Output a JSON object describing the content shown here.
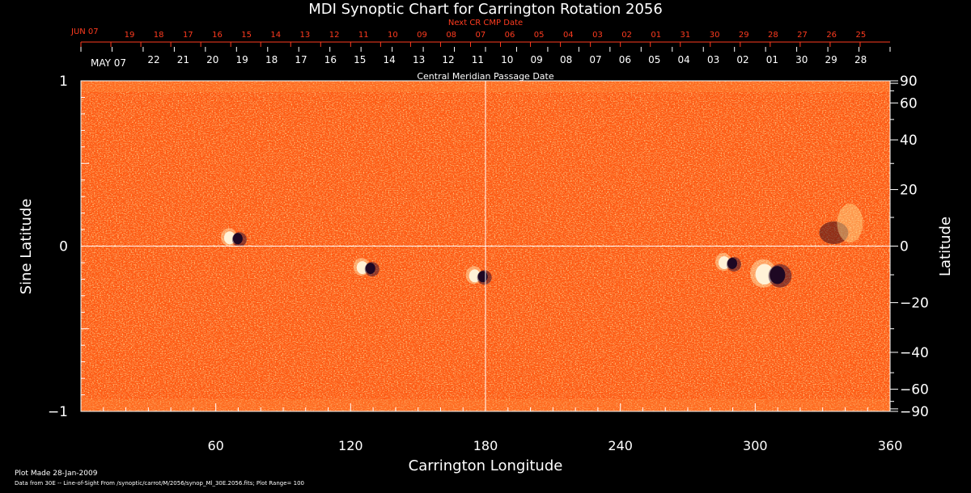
{
  "chart_data": {
    "type": "heatmap",
    "title": "MDI Synoptic Chart for Carrington Rotation 2056",
    "xlabel": "Carrington Longitude",
    "ylabel_left": "Sine Latitude",
    "ylabel_right": "Latitude",
    "xlim": [
      0,
      360
    ],
    "ylim": [
      -1,
      1
    ],
    "x_ticks": [
      60,
      120,
      180,
      240,
      300,
      360
    ],
    "y_left_ticks": [
      {
        "value": 1,
        "label": "1"
      },
      {
        "value": 0,
        "label": "0"
      },
      {
        "value": -1,
        "label": "−1"
      }
    ],
    "y_right_ticks": [
      {
        "deg": 90,
        "label": "90"
      },
      {
        "deg": 60,
        "label": "60"
      },
      {
        "deg": 40,
        "label": "40"
      },
      {
        "deg": 20,
        "label": "20"
      },
      {
        "deg": 0,
        "label": "0"
      },
      {
        "deg": -20,
        "label": "−20"
      },
      {
        "deg": -40,
        "label": "−40"
      },
      {
        "deg": -60,
        "label": "−60"
      },
      {
        "deg": -90,
        "label": "−90"
      }
    ],
    "top_axis_next_cr": {
      "label": "Next CR CMP Date",
      "first": "JUN 07",
      "days": [
        "19",
        "18",
        "17",
        "16",
        "15",
        "14",
        "13",
        "12",
        "11",
        "10",
        "09",
        "08",
        "07",
        "06",
        "05",
        "04",
        "03",
        "02",
        "01",
        "31",
        "30",
        "29",
        "28",
        "27",
        "26",
        "25"
      ]
    },
    "top_axis_cmp": {
      "label": "Central Meridian Passage Date",
      "first": "MAY 07",
      "days": [
        "22",
        "21",
        "20",
        "19",
        "18",
        "17",
        "16",
        "15",
        "14",
        "13",
        "12",
        "11",
        "10",
        "09",
        "08",
        "07",
        "06",
        "05",
        "04",
        "03",
        "02",
        "01",
        "30",
        "29",
        "28"
      ]
    },
    "active_regions": [
      {
        "lon": 68,
        "sinlat": 0.05,
        "note": "bipolar"
      },
      {
        "lon": 127,
        "sinlat": -0.13,
        "note": "bipolar"
      },
      {
        "lon": 177,
        "sinlat": -0.18,
        "note": "bipolar"
      },
      {
        "lon": 288,
        "sinlat": -0.1,
        "note": "bipolar"
      },
      {
        "lon": 307,
        "sinlat": -0.17,
        "note": "bipolar"
      },
      {
        "lon": 340,
        "sinlat": 0.1,
        "note": "diffuse"
      }
    ]
  },
  "footer": {
    "line1": "Plot Made 28-Jan-2009",
    "line2": "Data from 30E -- Line-of-Sight From /synoptic/carrot/M/2056/synop_Ml_30E.2056.fits; Plot Range=  100"
  },
  "colors": {
    "background": "#000000",
    "map_base": "#ff5a12",
    "red_axis_text": "#ff3b1f",
    "grid_line": "#ffffff"
  }
}
